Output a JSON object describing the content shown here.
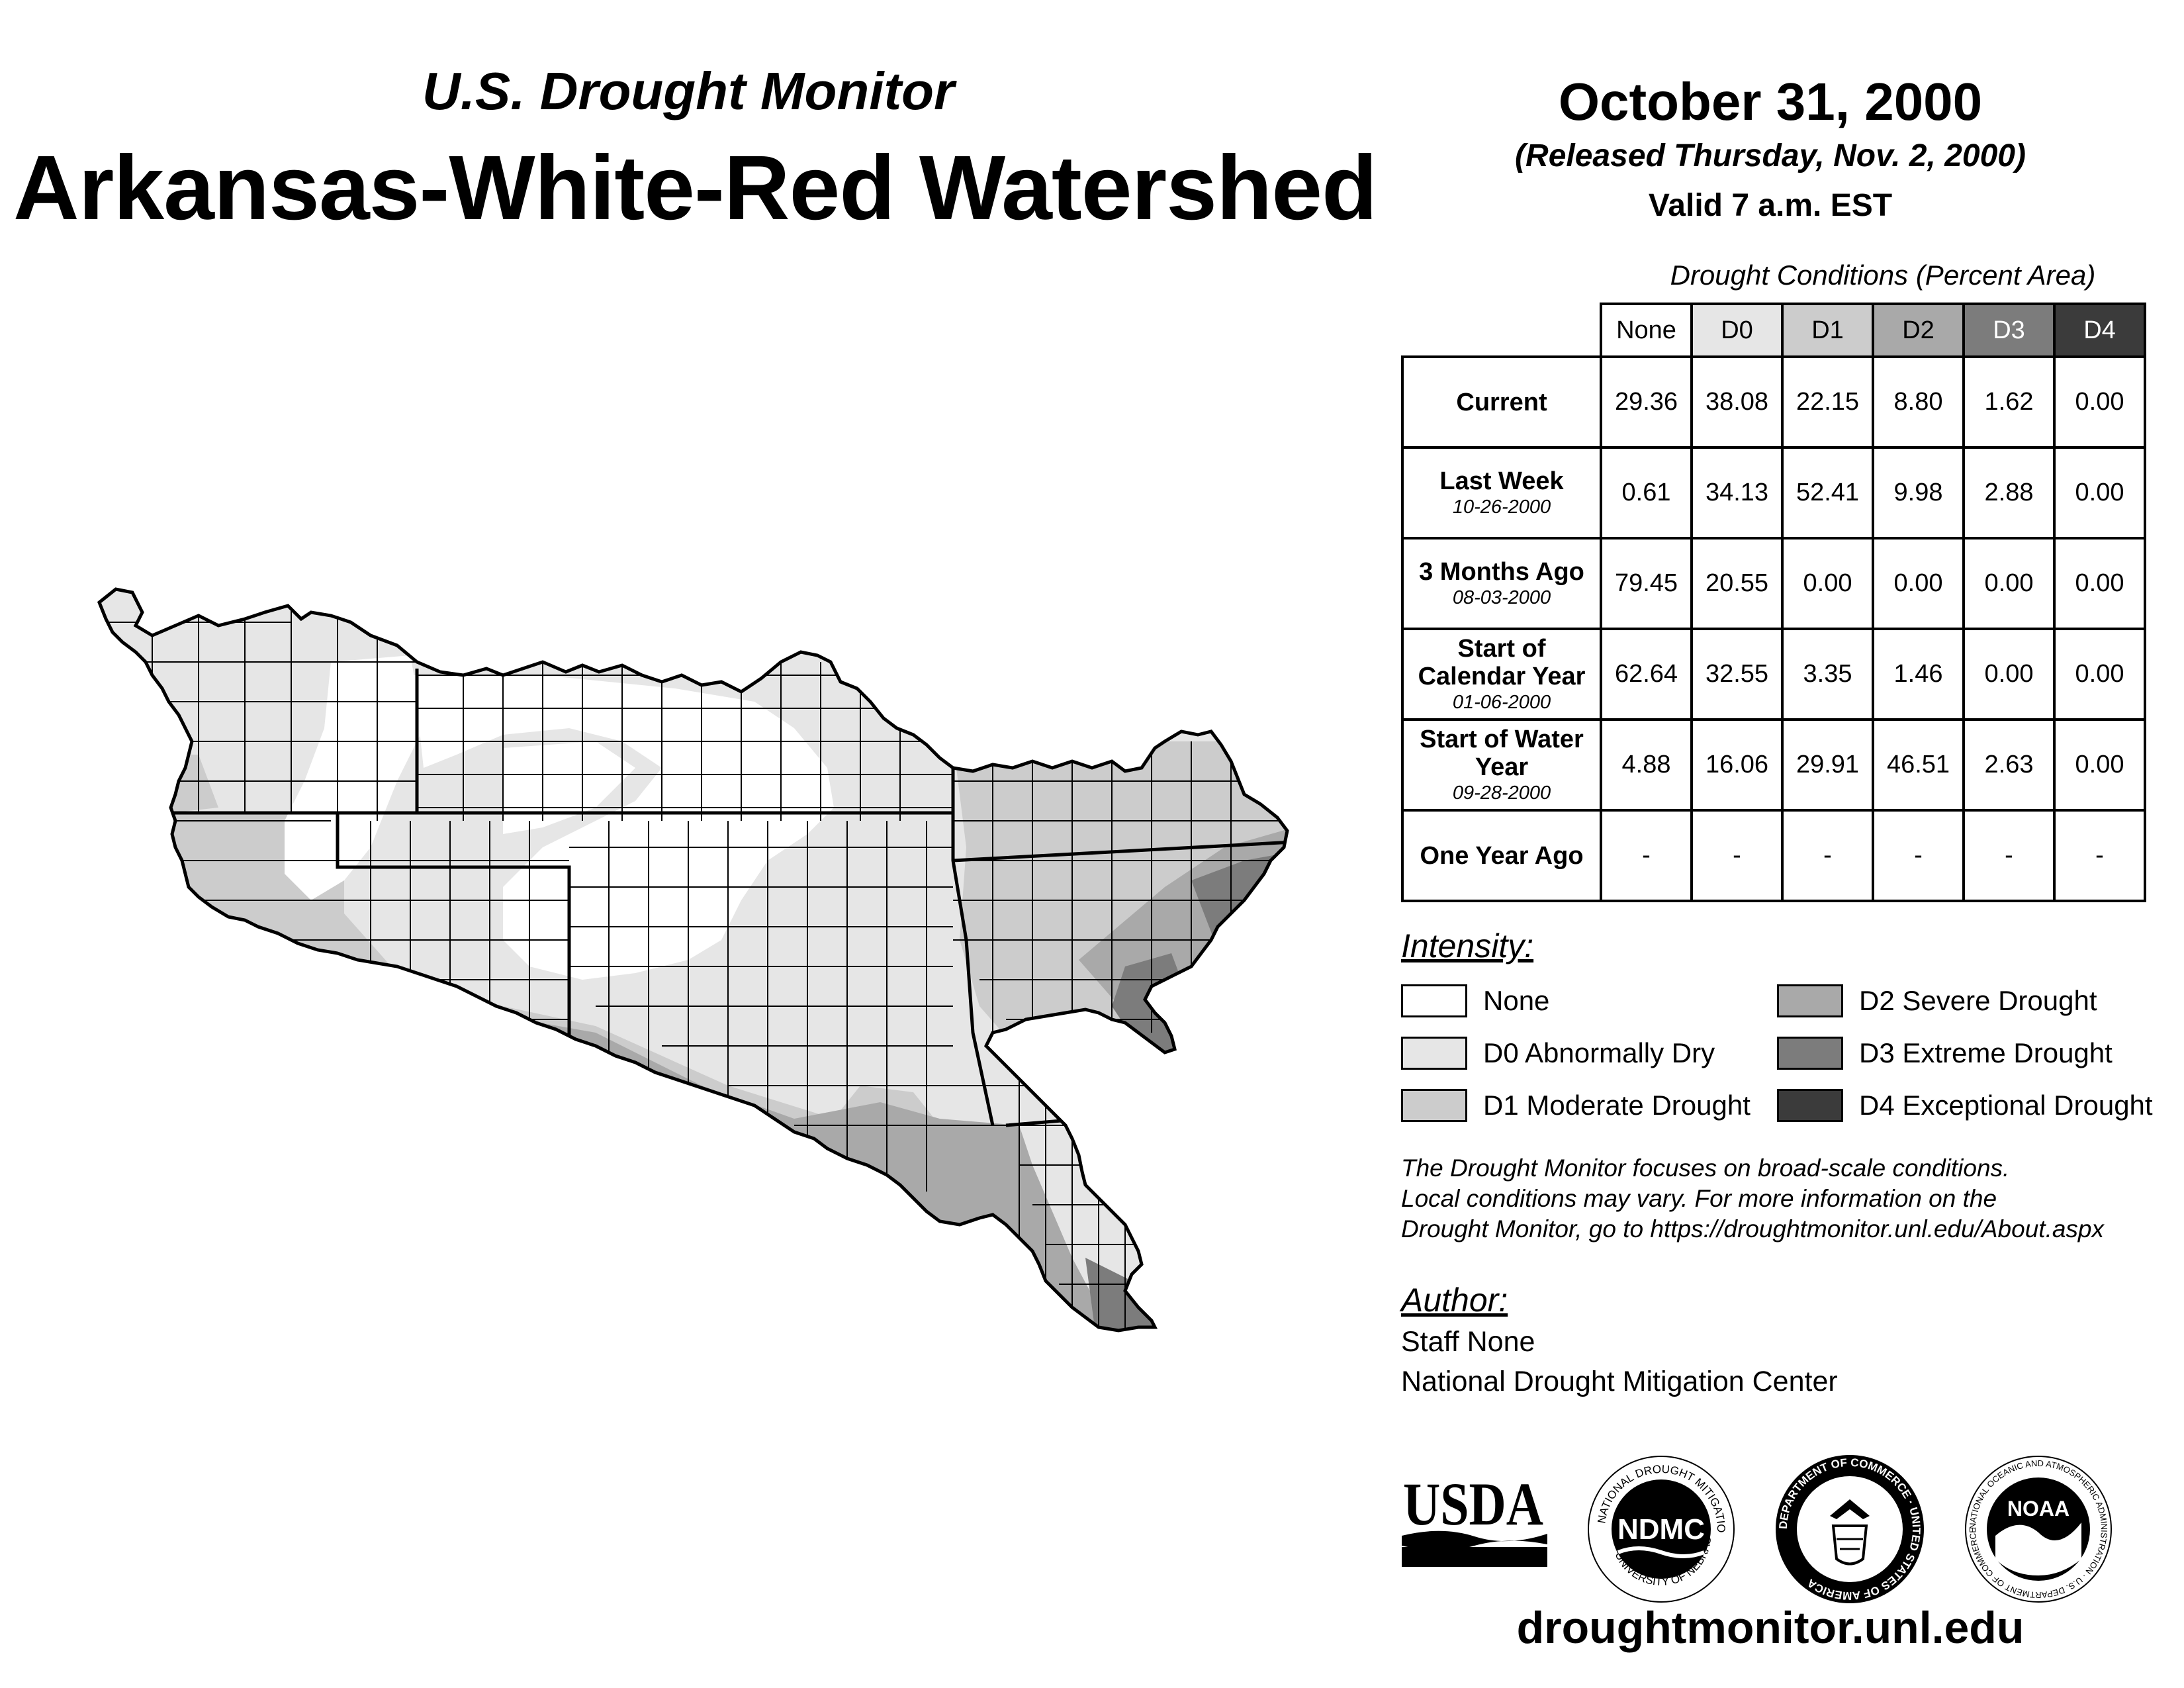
{
  "header": {
    "subtitle": "U.S. Drought Monitor",
    "title": "Arkansas-White-Red Watershed",
    "date": "October 31, 2000",
    "released": "(Released Thursday, Nov. 2, 2000)",
    "valid": "Valid 7 a.m. EST"
  },
  "table": {
    "caption": "Drought Conditions (Percent Area)",
    "columns": [
      "None",
      "D0",
      "D1",
      "D2",
      "D3",
      "D4"
    ],
    "rows": [
      {
        "label": "Current",
        "date": "",
        "values": [
          "29.36",
          "38.08",
          "22.15",
          "8.80",
          "1.62",
          "0.00"
        ]
      },
      {
        "label": "Last Week",
        "date": "10-26-2000",
        "values": [
          "0.61",
          "34.13",
          "52.41",
          "9.98",
          "2.88",
          "0.00"
        ]
      },
      {
        "label": "3 Months Ago",
        "date": "08-03-2000",
        "values": [
          "79.45",
          "20.55",
          "0.00",
          "0.00",
          "0.00",
          "0.00"
        ]
      },
      {
        "label": "Start of Calendar Year",
        "date": "01-06-2000",
        "values": [
          "62.64",
          "32.55",
          "3.35",
          "1.46",
          "0.00",
          "0.00"
        ]
      },
      {
        "label": "Start of Water Year",
        "date": "09-28-2000",
        "values": [
          "4.88",
          "16.06",
          "29.91",
          "46.51",
          "2.63",
          "0.00"
        ]
      },
      {
        "label": "One Year Ago",
        "date": "",
        "values": [
          "-",
          "-",
          "-",
          "-",
          "-",
          "-"
        ]
      }
    ]
  },
  "legend": {
    "title": "Intensity:",
    "items": [
      {
        "label": "None",
        "color": "#ffffff"
      },
      {
        "label": "D0 Abnormally Dry",
        "color": "#e6e6e6"
      },
      {
        "label": "D1 Moderate Drought",
        "color": "#cccccc"
      },
      {
        "label": "D2 Severe Drought",
        "color": "#a9a9a9"
      },
      {
        "label": "D3 Extreme Drought",
        "color": "#7c7c7c"
      },
      {
        "label": "D4 Exceptional Drought",
        "color": "#3b3b3b"
      }
    ]
  },
  "disclaimer": {
    "line1": "The Drought Monitor focuses on broad-scale conditions.",
    "line2": "Local conditions may vary. For more information on the",
    "line3": "Drought Monitor, go to https://droughtmonitor.unl.edu/About.aspx"
  },
  "author": {
    "title": "Author:",
    "name": "Staff None",
    "org": "National Drought Mitigation Center"
  },
  "logos": {
    "usda": "USDA",
    "ndmc": "NDMC",
    "ndmc_ring_top": "NATIONAL DROUGHT MITIGATION CENTER",
    "ndmc_ring_bottom": "UNIVERSITY OF NEBRASKA",
    "doc_ring": "DEPARTMENT OF COMMERCE · UNITED STATES OF AMERICA",
    "noaa": "NOAA",
    "noaa_ring": "NATIONAL OCEANIC AND ATMOSPHERIC ADMINISTRATION · U.S. DEPARTMENT OF COMMERCE"
  },
  "website": "droughtmonitor.unl.edu",
  "map": {
    "region": "Arkansas-White-Red Watershed"
  }
}
